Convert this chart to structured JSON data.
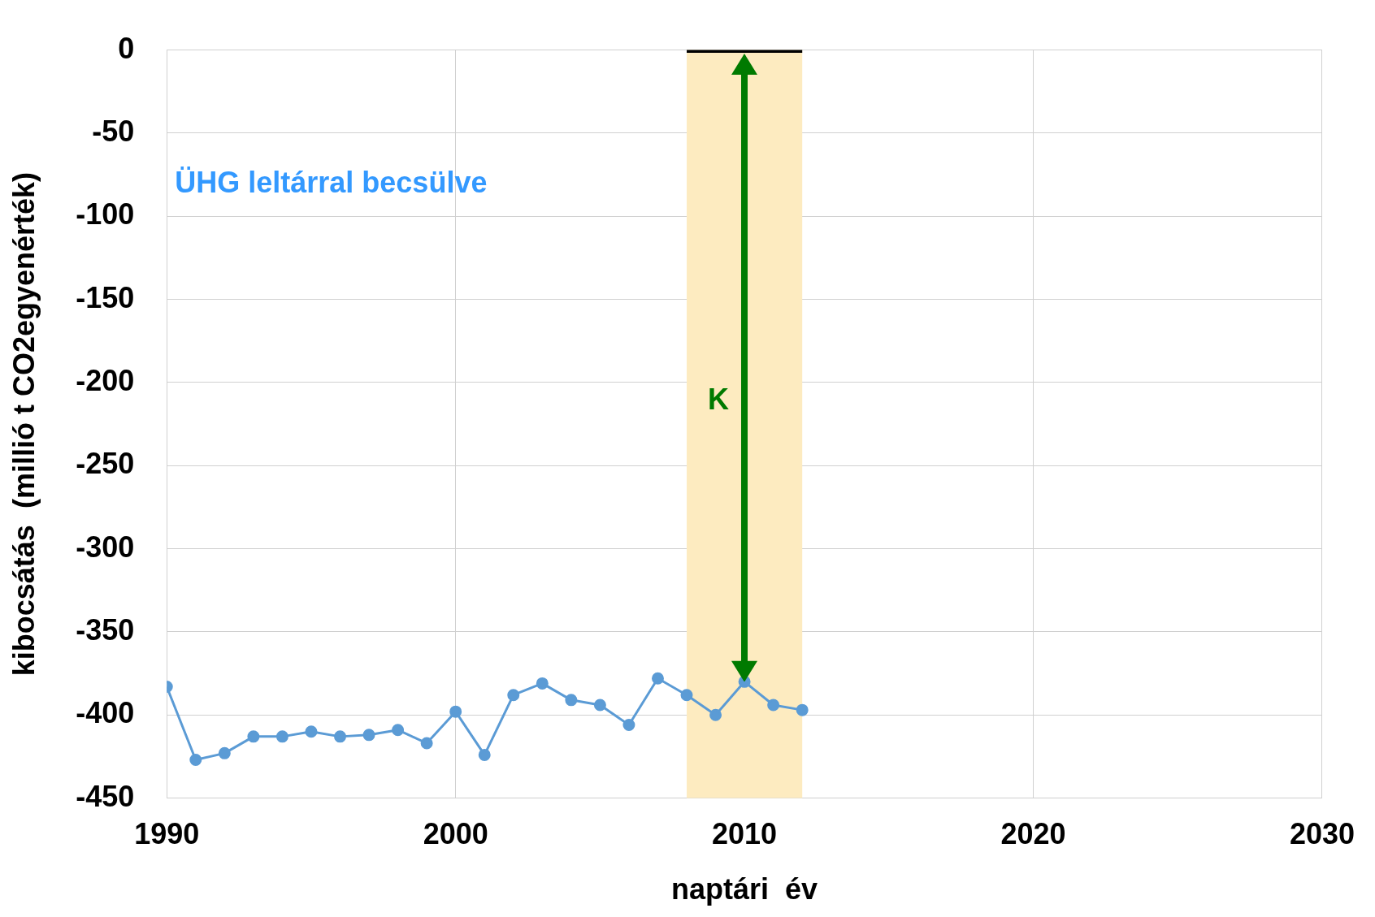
{
  "chart_data": {
    "type": "line",
    "xlabel": "naptári  év",
    "ylabel": "kibocsátás  (millió t CO2egyenérték)",
    "x": [
      1990,
      1991,
      1992,
      1993,
      1994,
      1995,
      1996,
      1997,
      1998,
      1999,
      2000,
      2001,
      2002,
      2003,
      2004,
      2005,
      2006,
      2007,
      2008,
      2009,
      2010,
      2011,
      2012
    ],
    "series": [
      {
        "color": "#5b9bd5",
        "values": [
          -383,
          -427,
          -423,
          -413,
          -413,
          -410,
          -413,
          -412,
          -409,
          -417,
          -398,
          -424,
          -388,
          -381,
          -391,
          -394,
          -406,
          -378,
          -388,
          -400,
          -380,
          -394,
          -397
        ]
      },
      {
        "x": [
          2008,
          2012
        ],
        "color": "#000000",
        "values": [
          0,
          0
        ],
        "marker": "none"
      }
    ],
    "marker": "circle",
    "line_style": "solid",
    "xlim": [
      1990,
      2030
    ],
    "xticks": [
      1990,
      2000,
      2010,
      2020,
      2030
    ],
    "ylim": [
      -450,
      0
    ],
    "yticks": [
      -450,
      -400,
      -350,
      -300,
      -250,
      -200,
      -150,
      -100,
      -50,
      0
    ],
    "grid": true,
    "legend": false,
    "bands": [
      {
        "axis": "x",
        "from": 2008,
        "to": 2012,
        "color": "#fdebc0"
      }
    ],
    "annotations": [
      "ÜHG leltárral becsülve",
      "K"
    ]
  }
}
